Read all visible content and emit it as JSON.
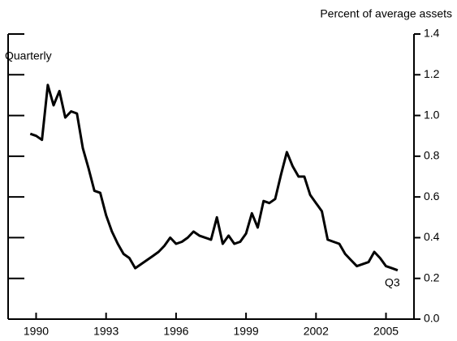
{
  "chart_data": {
    "type": "line",
    "subtitle": "Percent of average assets",
    "annotations": [
      "Quarterly",
      "Q3"
    ],
    "x": [
      1989.75,
      1990,
      1990.25,
      1990.5,
      1990.75,
      1991,
      1991.25,
      1991.5,
      1991.75,
      1992,
      1992.25,
      1992.5,
      1992.75,
      1993,
      1993.25,
      1993.5,
      1993.75,
      1994,
      1994.25,
      1994.5,
      1994.75,
      1995,
      1995.25,
      1995.5,
      1995.75,
      1996,
      1996.25,
      1996.5,
      1996.75,
      1997,
      1997.25,
      1997.5,
      1997.75,
      1998,
      1998.25,
      1998.5,
      1998.75,
      1999,
      1999.25,
      1999.5,
      1999.75,
      2000,
      2000.25,
      2000.5,
      2000.75,
      2001,
      2001.25,
      2001.5,
      2001.75,
      2002,
      2002.25,
      2002.5,
      2002.75,
      2003,
      2003.25,
      2003.5,
      2003.75,
      2004,
      2004.25,
      2004.5,
      2004.75,
      2005,
      2005.25,
      2005.5
    ],
    "values": [
      0.91,
      0.9,
      0.88,
      1.15,
      1.05,
      1.12,
      0.99,
      1.02,
      1.01,
      0.84,
      0.74,
      0.63,
      0.62,
      0.51,
      0.43,
      0.37,
      0.32,
      0.3,
      0.25,
      0.27,
      0.29,
      0.31,
      0.33,
      0.36,
      0.4,
      0.37,
      0.38,
      0.4,
      0.43,
      0.41,
      0.4,
      0.39,
      0.5,
      0.37,
      0.41,
      0.37,
      0.38,
      0.42,
      0.52,
      0.45,
      0.58,
      0.57,
      0.59,
      0.71,
      0.82,
      0.75,
      0.7,
      0.7,
      0.61,
      0.57,
      0.53,
      0.39,
      0.38,
      0.37,
      0.32,
      0.29,
      0.26,
      0.27,
      0.28,
      0.33,
      0.3,
      0.26,
      0.25,
      0.24
    ],
    "color": "#000000",
    "xlim": [
      1988.8,
      2006.2
    ],
    "xticks": [
      1990,
      1993,
      1996,
      1999,
      2002,
      2005
    ],
    "ylim": [
      0,
      1.4
    ],
    "yticks": [
      {
        "value": 0,
        "label": "0.0"
      },
      0.2,
      0.4,
      0.6,
      0.8,
      {
        "value": 1,
        "label": "1.0"
      },
      1.2,
      1.4
    ]
  }
}
